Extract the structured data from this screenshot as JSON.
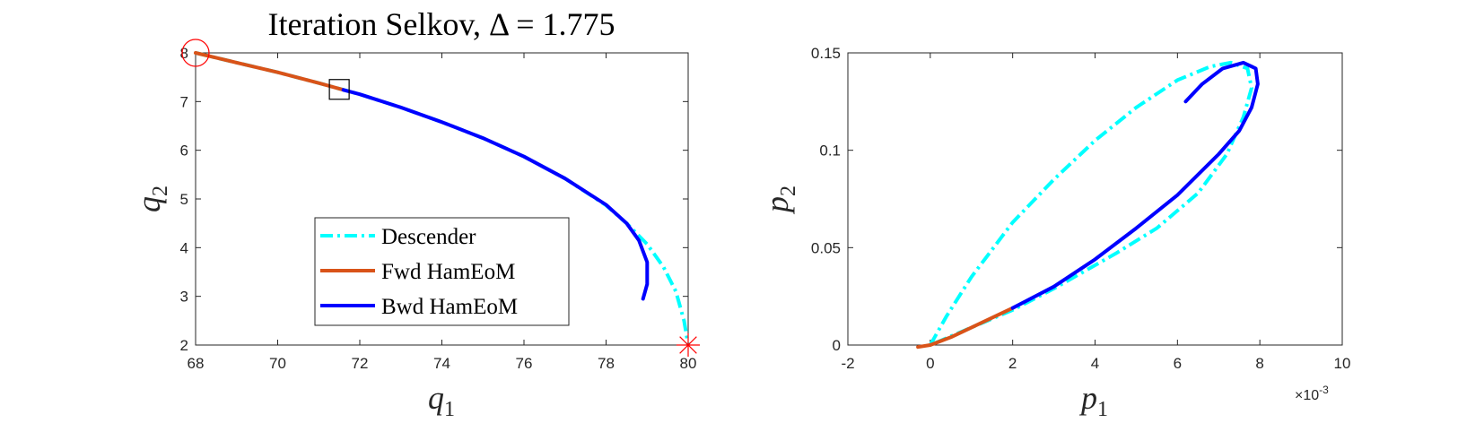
{
  "chart_data": [
    {
      "type": "line",
      "title": "Iteration Selkov, Δ = 1.775",
      "xlabel": "q",
      "xlabel_sub": "1",
      "ylabel": "q",
      "ylabel_sub": "2",
      "xlim": [
        68,
        80
      ],
      "ylim": [
        2,
        8
      ],
      "xticks": [
        68,
        70,
        72,
        74,
        76,
        78,
        80
      ],
      "yticks": [
        2,
        3,
        4,
        5,
        6,
        7,
        8
      ],
      "grid": false,
      "legend": {
        "placement": "bottom-center",
        "entries": [
          "Descender",
          "Fwd HamEoM",
          "Bwd HamEoM"
        ]
      },
      "series": [
        {
          "name": "Descender",
          "style": "dash-dot",
          "color": "#00FFFF",
          "x": [
            68.0,
            69.0,
            70.0,
            71.0,
            72.0,
            73.0,
            74.0,
            75.0,
            76.0,
            77.0,
            78.0,
            78.5,
            79.0,
            79.4,
            79.7,
            79.9,
            80.0
          ],
          "y": [
            8.0,
            7.8,
            7.6,
            7.38,
            7.15,
            6.88,
            6.58,
            6.25,
            5.87,
            5.42,
            4.87,
            4.5,
            4.07,
            3.6,
            3.1,
            2.5,
            2.0
          ]
        },
        {
          "name": "Fwd HamEoM",
          "style": "solid",
          "color": "#D95319",
          "x": [
            68.0,
            68.5,
            69.0,
            69.5,
            70.0,
            70.5,
            71.0,
            71.6
          ],
          "y": [
            8.0,
            7.9,
            7.8,
            7.7,
            7.6,
            7.49,
            7.38,
            7.24
          ]
        },
        {
          "name": "Bwd HamEoM",
          "style": "solid",
          "color": "#0000FF",
          "x": [
            71.6,
            72.0,
            73.0,
            74.0,
            75.0,
            76.0,
            77.0,
            78.0,
            78.5,
            78.8,
            79.0,
            79.0,
            78.9
          ],
          "y": [
            7.24,
            7.15,
            6.88,
            6.58,
            6.25,
            5.87,
            5.42,
            4.88,
            4.5,
            4.15,
            3.7,
            3.25,
            2.95
          ]
        }
      ],
      "markers": [
        {
          "kind": "circle",
          "color": "#FF0000",
          "x": 68.0,
          "y": 8.0
        },
        {
          "kind": "square",
          "color": "#000000",
          "x": 71.5,
          "y": 7.25
        },
        {
          "kind": "star",
          "color": "#FF0000",
          "x": 80.0,
          "y": 2.0
        }
      ]
    },
    {
      "type": "line",
      "xlabel": "p",
      "xlabel_sub": "1",
      "ylabel": "p",
      "ylabel_sub": "2",
      "xlim": [
        -2,
        10
      ],
      "ylim": [
        0,
        0.15
      ],
      "xticks": [
        -2,
        0,
        2,
        4,
        6,
        8,
        10
      ],
      "yticks": [
        0,
        0.05,
        0.1,
        0.15
      ],
      "yticklabels": [
        "0",
        "0.05",
        "0.1",
        "0.15"
      ],
      "x_multiplier": "×10",
      "x_multiplier_exp": "-3",
      "grid": false,
      "series": [
        {
          "name": "Descender",
          "style": "dash-dot",
          "color": "#00FFFF",
          "x": [
            0.0,
            0.4,
            1.0,
            2.0,
            3.0,
            4.0,
            5.0,
            6.0,
            6.8,
            7.3,
            7.7,
            7.8,
            7.6,
            7.2,
            6.5,
            5.5,
            4.5,
            3.0,
            2.0,
            1.0,
            0.0
          ],
          "y": [
            0.0,
            0.015,
            0.035,
            0.063,
            0.085,
            0.105,
            0.122,
            0.136,
            0.143,
            0.145,
            0.142,
            0.132,
            0.117,
            0.098,
            0.078,
            0.06,
            0.047,
            0.029,
            0.018,
            0.009,
            0.0
          ]
        },
        {
          "name": "Fwd HamEoM",
          "style": "solid",
          "color": "#D95319",
          "x": [
            -0.3,
            0.0,
            0.5,
            1.0,
            1.5,
            2.0
          ],
          "y": [
            -0.001,
            0.0,
            0.004,
            0.009,
            0.014,
            0.019
          ]
        },
        {
          "name": "Bwd HamEoM",
          "style": "solid",
          "color": "#0000FF",
          "x": [
            2.0,
            3.0,
            4.0,
            5.0,
            6.0,
            7.0,
            7.5,
            7.8,
            7.95,
            7.9,
            7.6,
            7.1,
            6.6,
            6.2
          ],
          "y": [
            0.019,
            0.03,
            0.044,
            0.06,
            0.077,
            0.098,
            0.11,
            0.122,
            0.134,
            0.142,
            0.145,
            0.142,
            0.134,
            0.125
          ]
        }
      ]
    }
  ]
}
